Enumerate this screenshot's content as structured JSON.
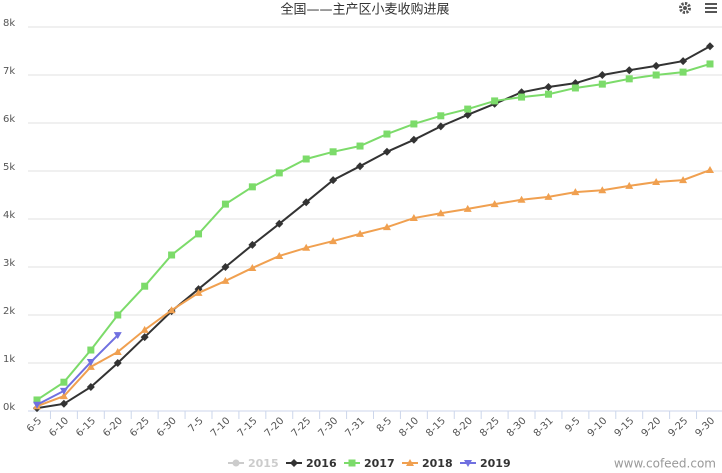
{
  "chart_data": {
    "type": "line",
    "title": "全国——主产区小麦收购进展",
    "categories": [
      "6-5",
      "6-10",
      "6-15",
      "6-20",
      "6-25",
      "6-30",
      "7-5",
      "7-10",
      "7-15",
      "7-20",
      "7-25",
      "7-30",
      "7-31",
      "8-5",
      "8-10",
      "8-15",
      "8-20",
      "8-25",
      "8-30",
      "8-31",
      "9-5",
      "9-10",
      "9-15",
      "9-20",
      "9-25",
      "9-30"
    ],
    "ylim": [
      0,
      8000
    ],
    "yticks": [
      {
        "value": 0,
        "label": "0k"
      },
      {
        "value": 1000,
        "label": "1k"
      },
      {
        "value": 2000,
        "label": "2k"
      },
      {
        "value": 3000,
        "label": "3k"
      },
      {
        "value": 4000,
        "label": "4k"
      },
      {
        "value": 5000,
        "label": "5k"
      },
      {
        "value": 6000,
        "label": "6k"
      },
      {
        "value": 7000,
        "label": "7k"
      },
      {
        "value": 8000,
        "label": "8k"
      }
    ],
    "grid": true,
    "series": [
      {
        "name": "2015",
        "color": "#cccccc",
        "visible": false,
        "marker": "circle",
        "values": [
          null,
          null,
          null,
          null,
          null,
          null,
          null,
          null,
          null,
          null,
          null,
          null,
          null,
          null,
          null,
          null,
          null,
          null,
          null,
          null,
          null,
          null,
          null,
          null,
          null,
          null
        ]
      },
      {
        "name": "2016",
        "color": "#333333",
        "marker": "diamond",
        "values": [
          60,
          150,
          500,
          1000,
          1540,
          2080,
          2540,
          3000,
          3460,
          3900,
          4350,
          4810,
          5100,
          5400,
          5650,
          5930,
          6170,
          6400,
          6640,
          6750,
          6830,
          7000,
          7100,
          7190,
          7290,
          7600
        ]
      },
      {
        "name": "2017",
        "color": "#7cdb6a",
        "marker": "square",
        "values": [
          230,
          600,
          1270,
          2000,
          2600,
          3250,
          3690,
          4310,
          4670,
          4960,
          5250,
          5400,
          5520,
          5770,
          5980,
          6150,
          6290,
          6460,
          6540,
          6600,
          6730,
          6810,
          6920,
          7000,
          7060,
          7230
        ]
      },
      {
        "name": "2018",
        "color": "#f0a050",
        "marker": "triangle",
        "values": [
          100,
          310,
          920,
          1230,
          1690,
          2100,
          2460,
          2710,
          2980,
          3230,
          3400,
          3540,
          3690,
          3830,
          4020,
          4120,
          4210,
          4310,
          4400,
          4460,
          4560,
          4600,
          4690,
          4770,
          4810,
          5020
        ]
      },
      {
        "name": "2019",
        "color": "#7070e0",
        "marker": "triangle-down",
        "values": [
          130,
          420,
          1020,
          1580,
          null,
          null,
          null,
          null,
          null,
          null,
          null,
          null,
          null,
          null,
          null,
          null,
          null,
          null,
          null,
          null,
          null,
          null,
          null,
          null,
          null,
          null
        ]
      }
    ],
    "watermark": "www.cofeed.com"
  }
}
